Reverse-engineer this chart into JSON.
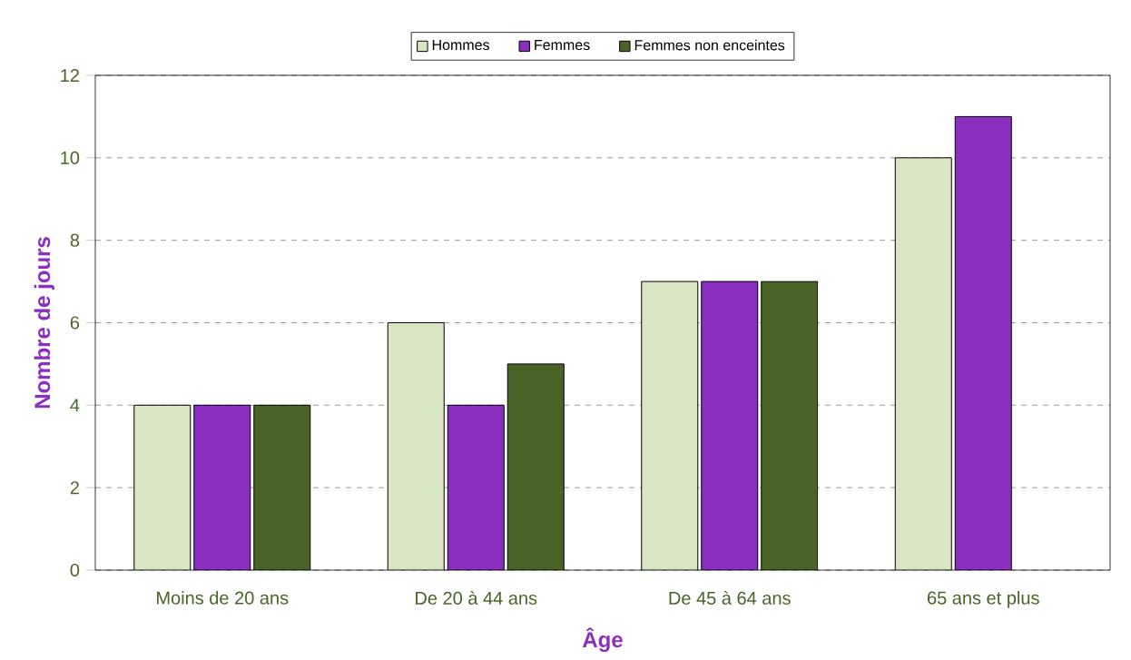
{
  "chart_data": {
    "type": "bar",
    "xlabel": "Âge",
    "ylabel": "Nombre de jours",
    "categories": [
      "Moins de 20 ans",
      "De 20 à 44 ans",
      "De 45 à 64 ans",
      "65 ans et plus"
    ],
    "series": [
      {
        "name": "Hommes",
        "color": "#d9e6c4",
        "values": [
          4,
          6,
          7,
          10
        ]
      },
      {
        "name": "Femmes",
        "color": "#8a2fbf",
        "values": [
          4,
          4,
          7,
          11
        ]
      },
      {
        "name": "Femmes non enceintes",
        "color": "#4a6427",
        "values": [
          4,
          5,
          7,
          null
        ]
      }
    ],
    "ylim": [
      0,
      12
    ],
    "yticks": [
      0,
      2,
      4,
      6,
      8,
      10,
      12
    ],
    "grid": "y",
    "legend": "top"
  }
}
